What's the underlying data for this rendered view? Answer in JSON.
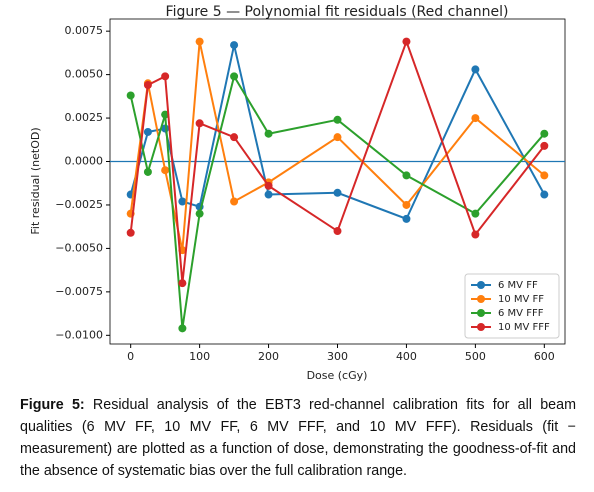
{
  "chart_data": {
    "type": "line",
    "title": "Figure 5 — Polynomial fit residuals (Red channel)",
    "xlabel": "Dose (cGy)",
    "ylabel": "Fit residual (netOD)",
    "x": [
      0,
      25,
      50,
      75,
      100,
      150,
      200,
      300,
      400,
      500,
      600
    ],
    "series": [
      {
        "name": "6 MV FF",
        "color": "#1f77b4",
        "values": [
          -0.0019,
          0.0017,
          0.0019,
          -0.0023,
          -0.0026,
          0.0067,
          -0.0019,
          -0.0018,
          -0.0033,
          0.0053,
          -0.0019
        ]
      },
      {
        "name": "10 MV FF",
        "color": "#ff7f0e",
        "values": [
          -0.003,
          0.0045,
          -0.0005,
          -0.0051,
          0.0069,
          -0.0023,
          -0.0012,
          0.0014,
          -0.0025,
          0.0025,
          -0.0008
        ]
      },
      {
        "name": "6 MV FFF",
        "color": "#2ca02c",
        "values": [
          0.0038,
          -0.0006,
          0.0027,
          -0.0096,
          -0.003,
          0.0049,
          0.0016,
          0.0024,
          -0.0008,
          -0.003,
          0.0016
        ]
      },
      {
        "name": "10 MV FFF",
        "color": "#d62728",
        "values": [
          -0.0041,
          0.0044,
          0.0049,
          -0.007,
          0.0022,
          0.0014,
          -0.0014,
          -0.004,
          0.0069,
          -0.0042,
          0.0009
        ]
      }
    ],
    "xlim": [
      -30,
      630
    ],
    "xticks": [
      0,
      100,
      200,
      300,
      400,
      500,
      600
    ],
    "ylim": [
      -0.0105,
      0.0082
    ],
    "yticks": [
      {
        "value": -0.01,
        "label": "−0.0100"
      },
      {
        "value": -0.0075,
        "label": "−0.0075"
      },
      {
        "value": -0.005,
        "label": "−0.0050"
      },
      {
        "value": -0.0025,
        "label": "−0.0025"
      },
      {
        "value": 0,
        "label": "0.0000"
      },
      {
        "value": 0.0025,
        "label": "0.0025"
      },
      {
        "value": 0.005,
        "label": "0.0050"
      },
      {
        "value": 0.0075,
        "label": "0.0075"
      }
    ],
    "reference_line": {
      "value": 0,
      "color": "#1f77b4"
    },
    "legend": "lower right",
    "grid": false
  },
  "caption": {
    "label": "Figure 5:",
    "text": "Residual analysis of the EBT3 red-channel calibration fits for all beam qualities (6 MV FF, 10 MV FF, 6 MV FFF, and 10 MV FFF). Residuals (fit − measurement) are plotted as a function of dose, demonstrating the goodness-of-fit and the absence of systematic bias over the full calibration range."
  }
}
